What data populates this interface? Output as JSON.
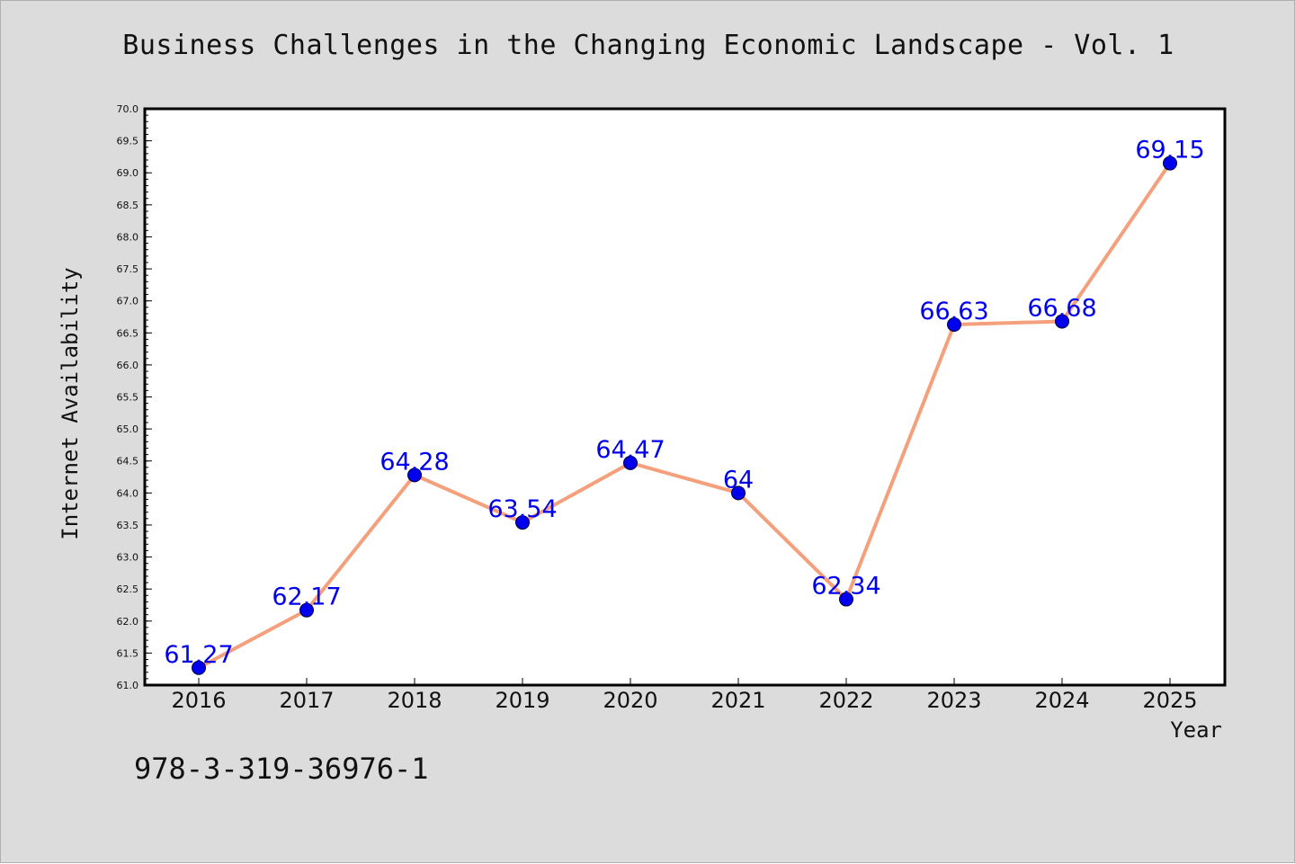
{
  "chart_data": {
    "type": "line",
    "title": "Business Challenges in the Changing Economic Landscape - Vol. 1",
    "xlabel": "Year",
    "ylabel": "Internet Availability",
    "categories": [
      "2016",
      "2017",
      "2018",
      "2019",
      "2020",
      "2021",
      "2022",
      "2023",
      "2024",
      "2025"
    ],
    "series": [
      {
        "values": [
          61.27,
          62.17,
          64.28,
          63.54,
          64.47,
          64,
          62.34,
          66.63,
          66.68,
          69.15
        ],
        "labels": [
          "61.27",
          "62.17",
          "64.28",
          "63.54",
          "64.47",
          "64",
          "62.34",
          "66.63",
          "66.68",
          "69.15"
        ]
      }
    ],
    "ylim": [
      61.0,
      70.0
    ],
    "yticks": [
      "61.0",
      "61.5",
      "62.0",
      "62.5",
      "63.0",
      "63.5",
      "64.0",
      "64.5",
      "65.0",
      "65.5",
      "66.0",
      "66.5",
      "67.0",
      "67.5",
      "68.0",
      "68.5",
      "69.0",
      "69.5",
      "70.0"
    ],
    "grid": false,
    "legend": "none",
    "colors": {
      "line": "#f4a07c",
      "marker": "#0000ee",
      "data_label": "#0000ee",
      "background": "#dcdcdc",
      "plot_area": "#ffffff"
    }
  },
  "footer": {
    "identifier": "978-3-319-36976-1"
  }
}
